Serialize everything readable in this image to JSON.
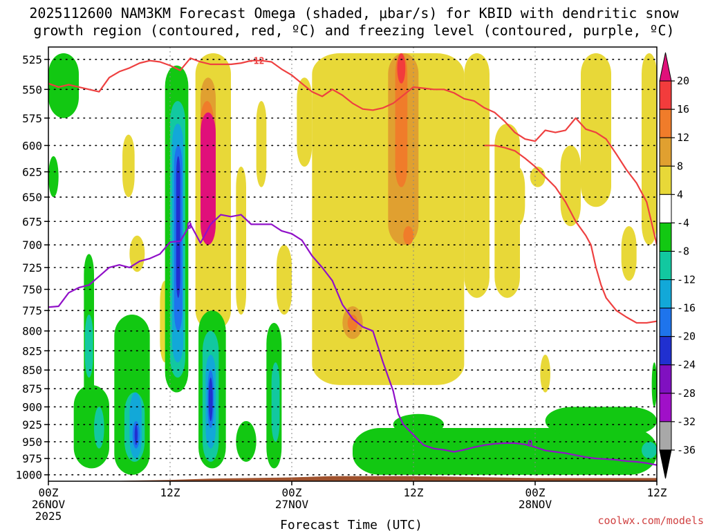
{
  "chart_data": {
    "type": "heatmap",
    "title_line1": "2025112600 NAM3KM Forecast Omega (shaded, μbar/s) for KBID with dendritic snow",
    "title_line2": "growth region (contoured, red, ºC) and freezing level (contoured, purple, ºC)",
    "xlabel": "Forecast Time (UTC)",
    "ylabel": "",
    "credit": "coolwx.com/models",
    "x_unit": "forecast hour",
    "xlim": [
      0,
      60
    ],
    "ylim": [
      1010,
      515
    ],
    "y_scale": "log-pressure",
    "y_ticks": [
      "525",
      "550",
      "575",
      "600",
      "625",
      "650",
      "675",
      "700",
      "725",
      "750",
      "775",
      "800",
      "825",
      "850",
      "875",
      "900",
      "925",
      "950",
      "975",
      "1000"
    ],
    "x_ticks": [
      {
        "hour": 0,
        "line1": "00Z",
        "line2": "26NOV",
        "line3": "2025"
      },
      {
        "hour": 12,
        "line1": "12Z",
        "line2": "",
        "line3": ""
      },
      {
        "hour": 24,
        "line1": "00Z",
        "line2": "27NOV",
        "line3": ""
      },
      {
        "hour": 36,
        "line1": "12Z",
        "line2": "",
        "line3": ""
      },
      {
        "hour": 48,
        "line1": "00Z",
        "line2": "28NOV",
        "line3": ""
      },
      {
        "hour": 60,
        "line1": "12Z",
        "line2": "",
        "line3": ""
      }
    ],
    "grid": true,
    "colorbar": {
      "placement": "right",
      "levels": [
        {
          "label": "20",
          "color": "#e0107a"
        },
        {
          "label": "16",
          "color": "#f23c3c"
        },
        {
          "label": "12",
          "color": "#f07c2a"
        },
        {
          "label": "8",
          "color": "#e0a030"
        },
        {
          "label": "4",
          "color": "#e8d838"
        },
        {
          "label": "-4",
          "color": "#ffffff"
        },
        {
          "label": "-8",
          "color": "#12c812"
        },
        {
          "label": "-12",
          "color": "#12c8a0"
        },
        {
          "label": "-16",
          "color": "#12a8d8"
        },
        {
          "label": "-20",
          "color": "#1e74ec"
        },
        {
          "label": "-24",
          "color": "#2030d0"
        },
        {
          "label": "-28",
          "color": "#8010c0"
        },
        {
          "label": "-32",
          "color": "#a010c8"
        },
        {
          "label": "-36",
          "color": "#a8a8a8"
        }
      ],
      "top_arrow_color": "#e0107a",
      "bottom_arrow_color": "#000000"
    },
    "terrain_color": "#a0522d",
    "omega_regions": [
      {
        "value": 6,
        "x0": 8,
        "x1": 9.5,
        "p0": 690,
        "p1": 730
      },
      {
        "value": 6,
        "x0": 7.3,
        "x1": 8.5,
        "p0": 590,
        "p1": 650
      },
      {
        "value": 6,
        "x0": 11,
        "x1": 12,
        "p0": 740,
        "p1": 840
      },
      {
        "value": 6,
        "x0": 14.5,
        "x1": 18,
        "p0": 520,
        "p1": 800
      },
      {
        "value": 6,
        "x0": 18.5,
        "x1": 19.5,
        "p0": 620,
        "p1": 780
      },
      {
        "value": 6,
        "x0": 20.5,
        "x1": 21.5,
        "p0": 560,
        "p1": 640
      },
      {
        "value": 6,
        "x0": 22.5,
        "x1": 24,
        "p0": 700,
        "p1": 780
      },
      {
        "value": 6,
        "x0": 24.5,
        "x1": 26,
        "p0": 540,
        "p1": 620
      },
      {
        "value": 6,
        "x0": 26,
        "x1": 41,
        "p0": 520,
        "p1": 870
      },
      {
        "value": 6,
        "x0": 41,
        "x1": 43.5,
        "p0": 520,
        "p1": 760
      },
      {
        "value": 6,
        "x0": 44,
        "x1": 46.5,
        "p0": 580,
        "p1": 760
      },
      {
        "value": 6,
        "x0": 45.5,
        "x1": 47,
        "p0": 620,
        "p1": 680
      },
      {
        "value": 6,
        "x0": 47.5,
        "x1": 49,
        "p0": 620,
        "p1": 640
      },
      {
        "value": 6,
        "x0": 50.5,
        "x1": 52.5,
        "p0": 600,
        "p1": 680
      },
      {
        "value": 6,
        "x0": 52.5,
        "x1": 55.5,
        "p0": 520,
        "p1": 660
      },
      {
        "value": 6,
        "x0": 58.5,
        "x1": 60,
        "p0": 520,
        "p1": 700
      },
      {
        "value": 6,
        "x0": 56.5,
        "x1": 58,
        "p0": 680,
        "p1": 740
      },
      {
        "value": 6,
        "x0": 48.5,
        "x1": 49.5,
        "p0": 830,
        "p1": 880
      },
      {
        "value": 10,
        "x0": 33.5,
        "x1": 36.5,
        "p0": 520,
        "p1": 700
      },
      {
        "value": 10,
        "x0": 29,
        "x1": 31,
        "p0": 770,
        "p1": 810
      },
      {
        "value": 10,
        "x0": 15,
        "x1": 16.5,
        "p0": 540,
        "p1": 700
      },
      {
        "value": 14,
        "x0": 34.2,
        "x1": 35.4,
        "p0": 520,
        "p1": 640
      },
      {
        "value": 14,
        "x0": 35,
        "x1": 36,
        "p0": 680,
        "p1": 700
      },
      {
        "value": 14,
        "x0": 15,
        "x1": 16.3,
        "p0": 560,
        "p1": 640
      },
      {
        "value": 14,
        "x0": 29.5,
        "x1": 30.5,
        "p0": 780,
        "p1": 800
      },
      {
        "value": 18,
        "x0": 34.4,
        "x1": 35.2,
        "p0": 520,
        "p1": 545
      },
      {
        "value": 22,
        "x0": 15,
        "x1": 16.5,
        "p0": 570,
        "p1": 700
      },
      {
        "value": -6,
        "x0": 0,
        "x1": 3,
        "p0": 520,
        "p1": 575
      },
      {
        "value": -6,
        "x0": 0,
        "x1": 1,
        "p0": 610,
        "p1": 650
      },
      {
        "value": -6,
        "x0": 3.5,
        "x1": 4.5,
        "p0": 710,
        "p1": 960
      },
      {
        "value": -6,
        "x0": 2.5,
        "x1": 6,
        "p0": 870,
        "p1": 990
      },
      {
        "value": -6,
        "x0": 4,
        "x1": 5,
        "p0": 930,
        "p1": 960
      },
      {
        "value": -6,
        "x0": 6.5,
        "x1": 10,
        "p0": 780,
        "p1": 1000
      },
      {
        "value": -6,
        "x0": 11.5,
        "x1": 13.8,
        "p0": 530,
        "p1": 880
      },
      {
        "value": -6,
        "x0": 14.8,
        "x1": 17.5,
        "p0": 775,
        "p1": 990
      },
      {
        "value": -6,
        "x0": 18.5,
        "x1": 20.5,
        "p0": 920,
        "p1": 980
      },
      {
        "value": -6,
        "x0": 21.5,
        "x1": 23,
        "p0": 790,
        "p1": 990
      },
      {
        "value": -6,
        "x0": 30,
        "x1": 60,
        "p0": 930,
        "p1": 1000
      },
      {
        "value": -6,
        "x0": 34,
        "x1": 39,
        "p0": 910,
        "p1": 940
      },
      {
        "value": -6,
        "x0": 49,
        "x1": 60,
        "p0": 900,
        "p1": 940
      },
      {
        "value": -6,
        "x0": 59.5,
        "x1": 60,
        "p0": 840,
        "p1": 900
      },
      {
        "value": -10,
        "x0": 3.6,
        "x1": 4.4,
        "p0": 780,
        "p1": 860
      },
      {
        "value": -10,
        "x0": 4.5,
        "x1": 5.5,
        "p0": 900,
        "p1": 960
      },
      {
        "value": -10,
        "x0": 7.5,
        "x1": 9.5,
        "p0": 880,
        "p1": 980
      },
      {
        "value": -10,
        "x0": 12,
        "x1": 13.5,
        "p0": 560,
        "p1": 860
      },
      {
        "value": -10,
        "x0": 15.2,
        "x1": 16.8,
        "p0": 800,
        "p1": 980
      },
      {
        "value": -10,
        "x0": 22,
        "x1": 22.8,
        "p0": 840,
        "p1": 950
      },
      {
        "value": -10,
        "x0": 58.5,
        "x1": 60,
        "p0": 950,
        "p1": 975
      },
      {
        "value": -14,
        "x0": 8,
        "x1": 9.2,
        "p0": 880,
        "p1": 975
      },
      {
        "value": -14,
        "x0": 12.2,
        "x1": 13.3,
        "p0": 580,
        "p1": 840
      },
      {
        "value": -14,
        "x0": 15.5,
        "x1": 16.5,
        "p0": 830,
        "p1": 960
      },
      {
        "value": -18,
        "x0": 8.3,
        "x1": 9,
        "p0": 920,
        "p1": 960
      },
      {
        "value": -18,
        "x0": 12.4,
        "x1": 13.2,
        "p0": 600,
        "p1": 800
      },
      {
        "value": -18,
        "x0": 15.7,
        "x1": 16.3,
        "p0": 850,
        "p1": 930
      },
      {
        "value": -22,
        "x0": 8.5,
        "x1": 8.8,
        "p0": 925,
        "p1": 955
      },
      {
        "value": -22,
        "x0": 12.6,
        "x1": 13,
        "p0": 610,
        "p1": 760
      },
      {
        "value": -22,
        "x0": 15.8,
        "x1": 16.2,
        "p0": 860,
        "p1": 920
      }
    ],
    "dgz_contours": [
      {
        "label": "-12",
        "label_at": [
          20.5,
          526
        ],
        "points": [
          [
            0,
            545
          ],
          [
            1,
            548
          ],
          [
            2,
            546
          ],
          [
            3,
            548
          ],
          [
            4,
            550
          ],
          [
            5,
            552
          ],
          [
            6,
            540
          ],
          [
            7,
            535
          ],
          [
            8,
            532
          ],
          [
            9,
            528
          ],
          [
            10,
            526
          ],
          [
            11,
            527
          ],
          [
            12,
            530
          ],
          [
            13,
            534
          ],
          [
            14,
            524
          ],
          [
            15,
            527
          ],
          [
            16,
            529
          ],
          [
            17,
            529
          ],
          [
            18,
            529
          ],
          [
            19,
            528
          ],
          [
            20,
            526
          ],
          [
            21,
            526
          ],
          [
            22,
            527
          ],
          [
            23,
            533
          ],
          [
            24,
            538
          ],
          [
            25,
            545
          ],
          [
            26,
            552
          ],
          [
            27,
            556
          ],
          [
            28,
            550
          ],
          [
            29,
            555
          ],
          [
            30,
            562
          ],
          [
            31,
            567
          ],
          [
            32,
            568
          ],
          [
            33,
            566
          ],
          [
            34,
            562
          ],
          [
            35,
            555
          ],
          [
            36,
            548
          ],
          [
            37,
            549
          ],
          [
            38,
            550
          ],
          [
            39,
            550
          ],
          [
            40,
            553
          ],
          [
            41,
            558
          ],
          [
            42,
            560
          ],
          [
            43,
            566
          ],
          [
            44,
            570
          ],
          [
            45,
            578
          ],
          [
            46,
            588
          ],
          [
            47,
            594
          ],
          [
            48,
            596
          ],
          [
            49,
            586
          ],
          [
            50,
            588
          ],
          [
            51,
            586
          ],
          [
            52,
            575
          ],
          [
            53,
            585
          ],
          [
            54,
            588
          ],
          [
            55,
            594
          ],
          [
            56,
            608
          ],
          [
            57,
            623
          ],
          [
            58,
            636
          ],
          [
            59,
            655
          ],
          [
            60,
            700
          ]
        ]
      },
      {
        "label": "",
        "label_at": null,
        "points": [
          [
            43,
            600
          ],
          [
            44,
            600
          ],
          [
            45,
            602
          ],
          [
            46,
            605
          ],
          [
            47,
            612
          ],
          [
            48,
            620
          ],
          [
            49,
            630
          ],
          [
            50,
            640
          ],
          [
            51,
            655
          ],
          [
            52,
            675
          ],
          [
            53,
            690
          ],
          [
            53.5,
            700
          ],
          [
            54,
            725
          ],
          [
            54.5,
            745
          ],
          [
            55,
            760
          ],
          [
            56,
            775
          ],
          [
            57,
            783
          ],
          [
            58,
            790
          ],
          [
            59,
            790
          ],
          [
            60,
            788
          ]
        ]
      }
    ],
    "freezing_level": {
      "label": "0",
      "label_at": [
        13.9,
        679
      ],
      "points": [
        [
          0,
          771
        ],
        [
          1,
          770
        ],
        [
          2,
          754
        ],
        [
          3,
          748
        ],
        [
          4,
          745
        ],
        [
          5,
          735
        ],
        [
          6,
          725
        ],
        [
          7,
          722
        ],
        [
          8,
          725
        ],
        [
          9,
          718
        ],
        [
          10,
          715
        ],
        [
          11,
          710
        ],
        [
          12,
          697
        ],
        [
          13,
          696
        ],
        [
          14,
          678
        ],
        [
          15,
          698
        ],
        [
          16,
          678
        ],
        [
          17,
          668
        ],
        [
          18,
          670
        ],
        [
          19,
          668
        ],
        [
          20,
          678
        ],
        [
          21,
          678
        ],
        [
          22,
          678
        ],
        [
          23,
          685
        ],
        [
          24,
          688
        ],
        [
          25,
          695
        ],
        [
          26,
          712
        ],
        [
          27,
          725
        ],
        [
          28,
          740
        ],
        [
          29,
          768
        ],
        [
          30,
          785
        ],
        [
          31,
          795
        ],
        [
          32,
          800
        ],
        [
          33,
          840
        ],
        [
          34,
          878
        ],
        [
          34.5,
          910
        ],
        [
          35,
          925
        ],
        [
          36,
          940
        ],
        [
          37,
          955
        ],
        [
          38,
          960
        ],
        [
          39,
          962
        ],
        [
          40,
          965
        ],
        [
          41,
          962
        ],
        [
          42,
          958
        ],
        [
          43,
          955
        ],
        [
          44,
          953
        ],
        [
          45,
          952
        ],
        [
          46,
          952
        ],
        [
          47,
          954
        ],
        [
          48,
          958
        ],
        [
          49,
          963
        ],
        [
          50,
          965
        ],
        [
          51,
          967
        ],
        [
          52,
          970
        ],
        [
          53,
          973
        ],
        [
          54,
          975
        ],
        [
          55,
          976
        ],
        [
          56,
          977
        ],
        [
          57,
          979
        ],
        [
          58,
          980
        ],
        [
          59,
          982
        ],
        [
          60,
          985
        ]
      ],
      "label2_at": [
        47.5,
        952
      ]
    },
    "terrain": [
      [
        0,
        1013
      ],
      [
        4,
        1011
      ],
      [
        8,
        1009
      ],
      [
        12,
        1008
      ],
      [
        16,
        1006
      ],
      [
        20,
        1005
      ],
      [
        24,
        1004
      ],
      [
        28,
        1002
      ],
      [
        32,
        1002
      ],
      [
        36,
        1002
      ],
      [
        40,
        1003
      ],
      [
        44,
        1004
      ],
      [
        48,
        1005
      ],
      [
        52,
        1005
      ],
      [
        56,
        1005
      ],
      [
        60,
        1005
      ]
    ]
  }
}
